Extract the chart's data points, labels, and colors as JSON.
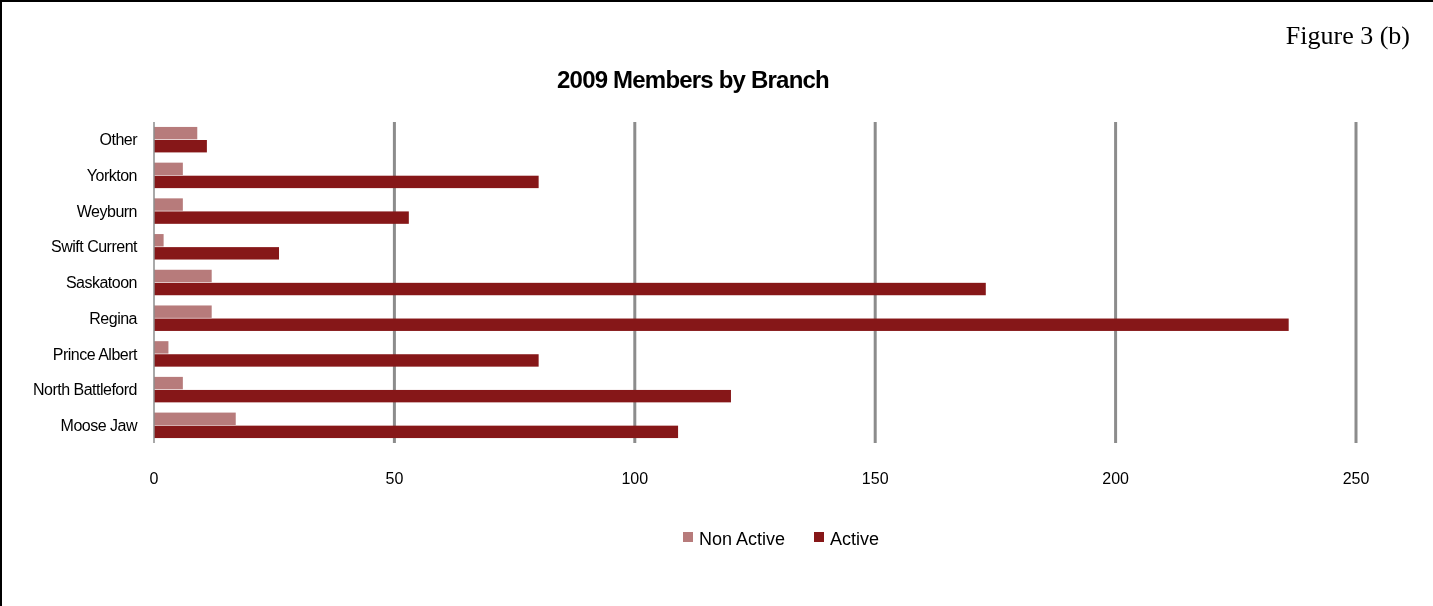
{
  "chart_data": {
    "type": "bar",
    "orientation": "horizontal",
    "title": "2009 Members by Branch",
    "annotations": [
      "Figure 3 (b)"
    ],
    "categories": [
      "Other",
      "Yorkton",
      "Weyburn",
      "Swift Current",
      "Saskatoon",
      "Regina",
      "Prince Albert",
      "North Battleford",
      "Moose Jaw"
    ],
    "series": [
      {
        "name": "Non Active",
        "color": "#b77b7b",
        "values": [
          9,
          6,
          6,
          2,
          12,
          12,
          3,
          6,
          17
        ]
      },
      {
        "name": "Active",
        "color": "#861718",
        "values": [
          11,
          80,
          53,
          26,
          173,
          236,
          80,
          120,
          109
        ]
      }
    ],
    "xlim": [
      0,
      250
    ],
    "xticks": [
      0,
      50,
      100,
      150,
      200,
      250
    ],
    "grid": "x",
    "legend": "bottom"
  }
}
